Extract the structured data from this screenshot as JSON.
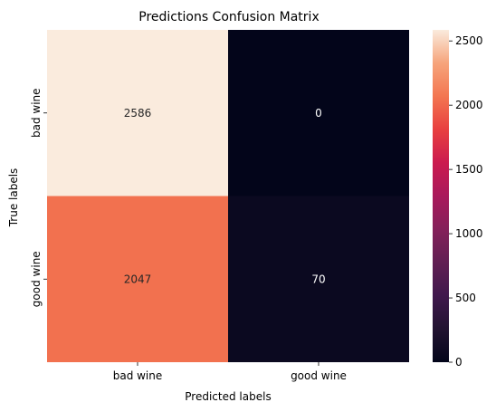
{
  "chart_data": {
    "type": "heatmap",
    "title": "Predictions Confusion Matrix",
    "xlabel": "Predicted labels",
    "ylabel": "True labels",
    "x_categories": [
      "bad wine",
      "good wine"
    ],
    "y_categories": [
      "bad wine",
      "good wine"
    ],
    "values": [
      [
        2586,
        0
      ],
      [
        2047,
        70
      ]
    ],
    "colorbar": {
      "colormap": "rocket",
      "range": [
        0,
        2586
      ],
      "ticks": [
        0,
        500,
        1000,
        1500,
        2000,
        2500
      ]
    },
    "grid": false
  }
}
